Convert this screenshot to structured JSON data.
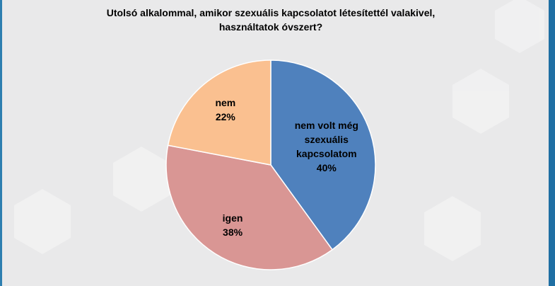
{
  "chart_data": {
    "type": "pie",
    "title": "Utolsó alkalommal, amikor szexuális kapcsolatot létesítettél valakivel, használtatok óvszert?",
    "categories": [
      "nem volt még szexuális kapcsolatom",
      "igen",
      "nem"
    ],
    "values": [
      40,
      38,
      22
    ],
    "value_labels": [
      "40%",
      "38%",
      "22%"
    ],
    "colors": [
      "#4f81bd",
      "#d99694",
      "#fac090"
    ]
  }
}
